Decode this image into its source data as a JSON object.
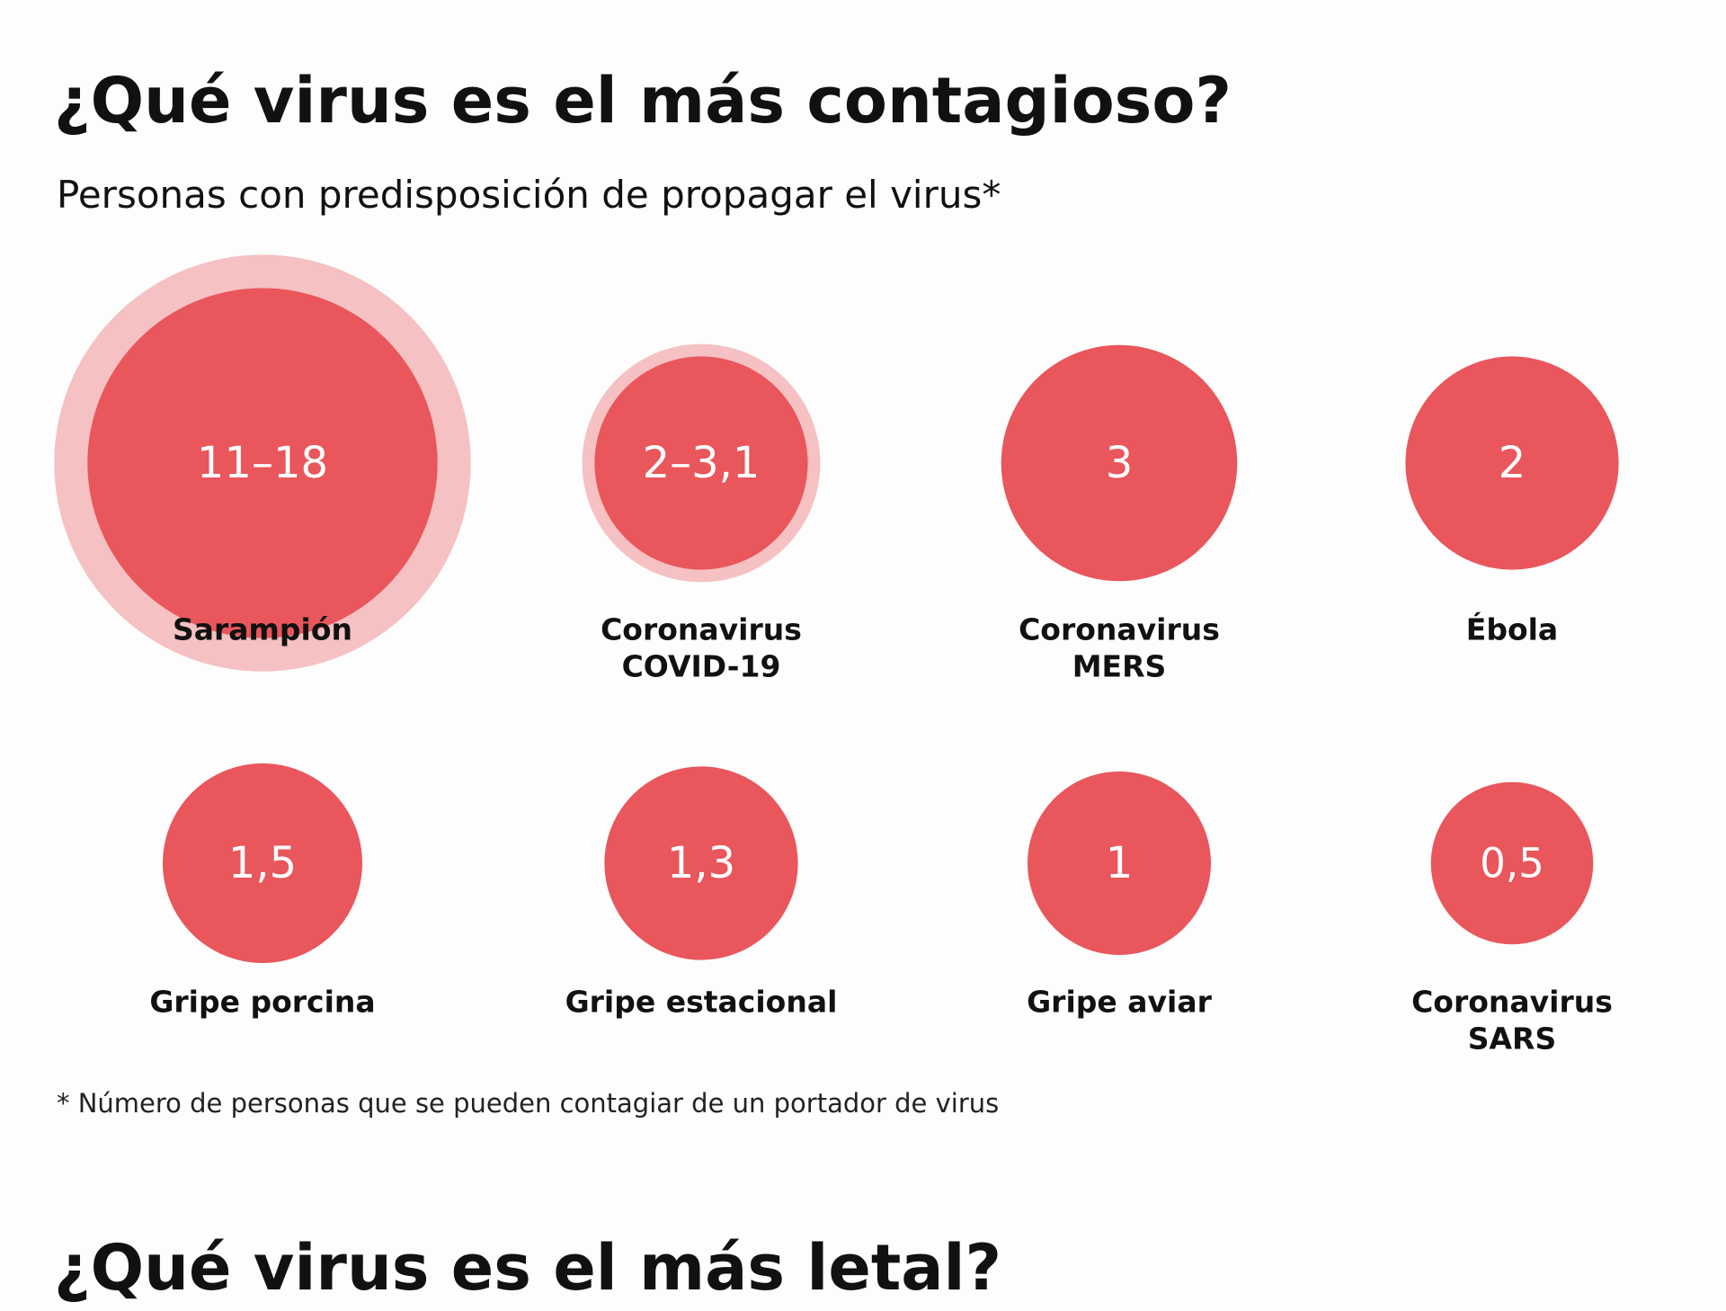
{
  "section_1": {
    "title": "¿Qué virus es el más contagioso?",
    "subtitle": "Personas con predisposición de propagar el virus*",
    "footnote": "* Número de personas que se pueden contagiar de un portador de virus"
  },
  "section_2": {
    "title": "¿Qué virus es el más letal?"
  },
  "colors": {
    "bubble": "#e9565b",
    "range_halo": "#f5c1c3",
    "name_on_bubble": "#fbe3e4",
    "text": "#111111"
  },
  "chart_data": {
    "type": "bubble",
    "title": "¿Qué virus es el más contagioso?",
    "subtitle": "Personas con predisposición de propagar el virus*",
    "items": [
      {
        "name_lines": [
          "Sarampión"
        ],
        "value_label": "11–18",
        "min": 11,
        "max": 18
      },
      {
        "name_lines": [
          "Coronavirus",
          "COVID-19"
        ],
        "value_label": "2–3,1",
        "min": 2,
        "max": 3.1
      },
      {
        "name_lines": [
          "Coronavirus",
          "MERS"
        ],
        "value_label": "3",
        "min": 3,
        "max": 3
      },
      {
        "name_lines": [
          "Ébola"
        ],
        "value_label": "2",
        "min": 2,
        "max": 2
      },
      {
        "name_lines": [
          "Gripe porcina"
        ],
        "value_label": "1,5",
        "min": 1.5,
        "max": 1.5
      },
      {
        "name_lines": [
          "Gripe estacional"
        ],
        "value_label": "1,3",
        "min": 1.3,
        "max": 1.3
      },
      {
        "name_lines": [
          "Gripe aviar"
        ],
        "value_label": "1",
        "min": 1,
        "max": 1
      },
      {
        "name_lines": [
          "Coronavirus",
          "SARS"
        ],
        "value_label": "0,5",
        "min": 0.5,
        "max": 0.5
      }
    ]
  }
}
